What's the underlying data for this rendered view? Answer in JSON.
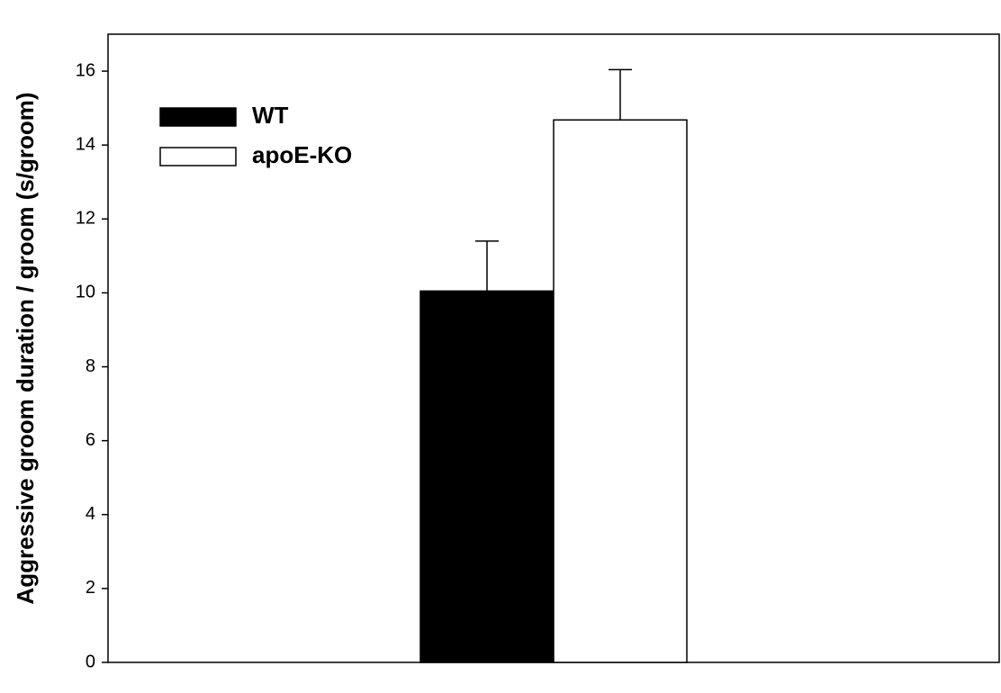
{
  "chart_data": {
    "type": "bar",
    "ylabel": "Aggressive groom duration / groom (s/groom)",
    "categories": [
      null
    ],
    "series": [
      {
        "name": "WT",
        "color": "#000000",
        "values": [
          10.05
        ],
        "errors": [
          1.35
        ]
      },
      {
        "name": "apoE-KO",
        "color": "#ffffff",
        "values": [
          14.68
        ],
        "errors": [
          1.36
        ]
      }
    ],
    "ylim": [
      0,
      17
    ],
    "yticks": [
      0,
      2,
      4,
      6,
      8,
      10,
      12,
      14,
      16
    ],
    "legend": "upper-left",
    "grid": false
  }
}
